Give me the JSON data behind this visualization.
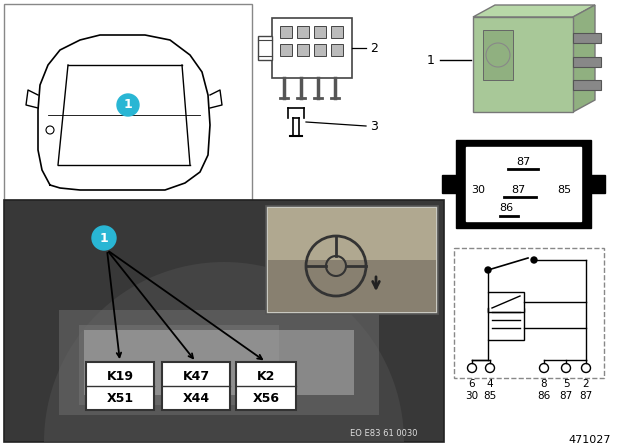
{
  "bg_color": "#ffffff",
  "relay_green": "#a8c898",
  "relay_green_dark": "#90b080",
  "relay_green_top": "#b8d8a8",
  "callout_color": "#29b6d4",
  "callout_text": "#ffffff",
  "photo_bg": "#404040",
  "photo_mid": "#585858",
  "photo_light": "#787878",
  "box_texts": [
    "K19\nX51",
    "K47\nX44",
    "K2\nX56"
  ],
  "pin_row1": [
    "6",
    "4",
    "8",
    "5",
    "2"
  ],
  "pin_row2": [
    "30",
    "85",
    "86",
    "87",
    "87"
  ],
  "part_number": "471027",
  "eo_number": "EO E83 61 0030"
}
